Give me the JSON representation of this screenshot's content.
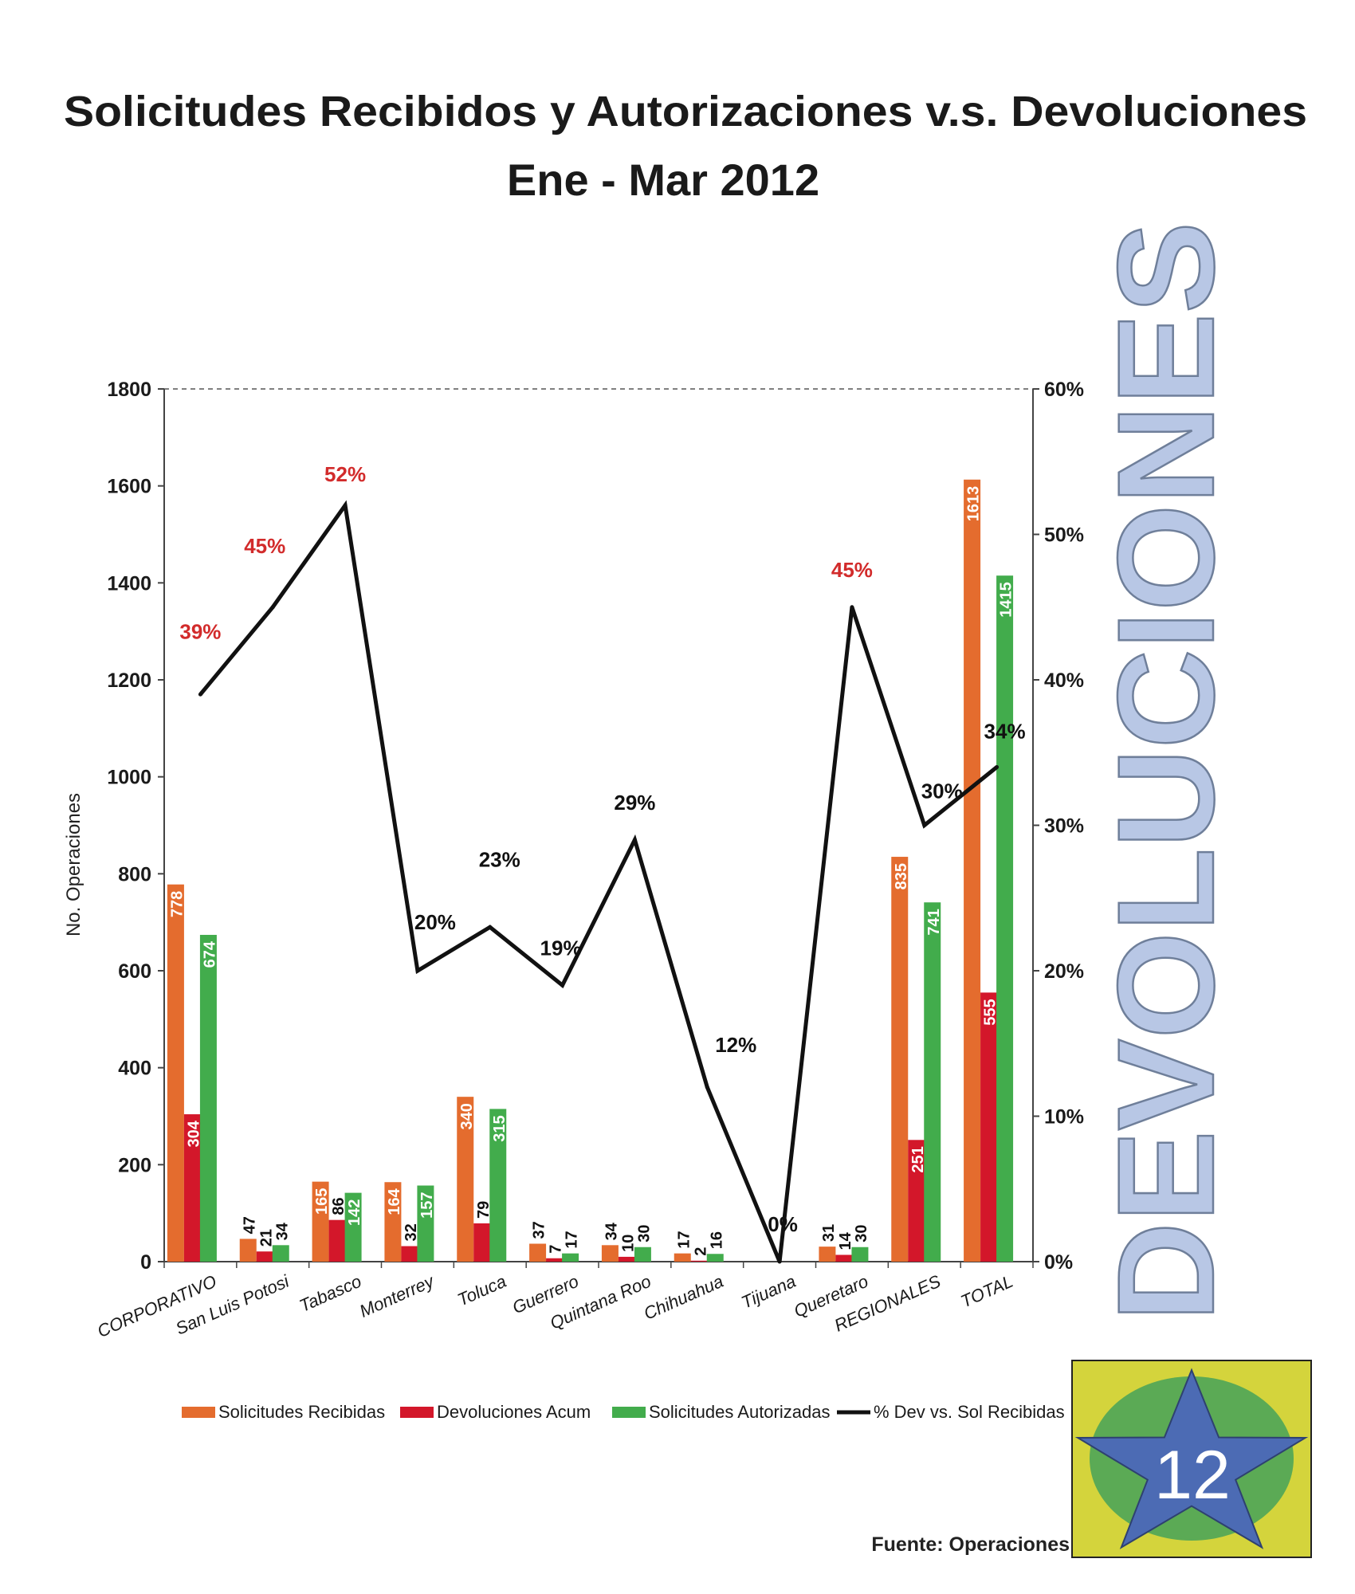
{
  "chart_data": {
    "type": "bar",
    "title": "Solicitudes Recibidos y Autorizaciones v.s. Devoluciones",
    "subtitle": "Ene - Mar 2012",
    "ylabel": "No. Operaciones",
    "ylim": [
      0,
      1800
    ],
    "y_ticks": [
      "0",
      "200",
      "400",
      "600",
      "800",
      "1000",
      "1200",
      "1400",
      "1600",
      "1800"
    ],
    "y2lim": [
      0,
      0.6
    ],
    "y2_ticks": [
      "0%",
      "10%",
      "20%",
      "30%",
      "40%",
      "50%",
      "60%"
    ],
    "categories": [
      "CORPORATIVO",
      "San Luis Potosi",
      "Tabasco",
      "Monterrey",
      "Toluca",
      "Guerrero",
      "Quintana Roo",
      "Chihuahua",
      "Tijuana",
      "Queretaro",
      "REGIONALES",
      "TOTAL"
    ],
    "series": [
      {
        "name": "Solicitudes Recibidas",
        "kind": "bar",
        "color": "#E46C2E",
        "values": [
          778,
          47,
          165,
          164,
          340,
          37,
          34,
          17,
          0,
          31,
          835,
          1613
        ]
      },
      {
        "name": "Devoluciones Acum",
        "kind": "bar",
        "color": "#D3172A",
        "values": [
          304,
          21,
          86,
          32,
          79,
          7,
          10,
          2,
          0,
          14,
          251,
          555
        ]
      },
      {
        "name": "Solicitudes Autorizadas",
        "kind": "bar",
        "color": "#42AC4C",
        "values": [
          674,
          34,
          142,
          157,
          315,
          17,
          30,
          16,
          0,
          30,
          741,
          1415
        ]
      },
      {
        "name": "% Dev vs. Sol Recibidas",
        "kind": "line",
        "axis": "right",
        "color": "#111111",
        "values": [
          0.39,
          0.45,
          0.52,
          0.2,
          0.23,
          0.19,
          0.29,
          0.12,
          0.0,
          0.45,
          0.3,
          0.34
        ]
      }
    ],
    "percent_labels": [
      "39%",
      "45%",
      "52%",
      "20%",
      "23%",
      "19%",
      "29%",
      "12%",
      "0%",
      "45%",
      "30%",
      "34%"
    ],
    "percent_label_colors": [
      "#D22B2B",
      "#D22B2B",
      "#D22B2B",
      "#111111",
      "#111111",
      "#111111",
      "#111111",
      "#111111",
      "#111111",
      "#D22B2B",
      "#111111",
      "#111111"
    ],
    "legend_position": "bottom",
    "grid": false
  },
  "side_banner": "DEVOLUCIONES",
  "badge_number": "12",
  "source": "Fuente: Operaciones",
  "colors": {
    "banner_fill": "#B8C7E5",
    "badge_bg": "#D4D43C",
    "badge_circle": "#5BAA55",
    "badge_star": "#4C6BB4"
  }
}
